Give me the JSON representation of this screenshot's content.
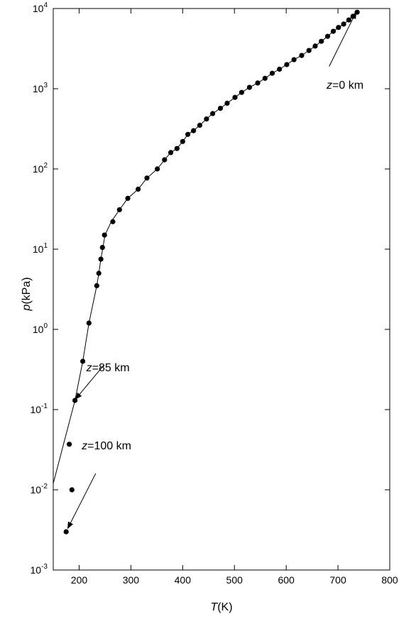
{
  "chart_data": {
    "type": "scatter",
    "x_axis": {
      "label_var": "T",
      "label_unit": "(K)",
      "lim": [
        150,
        800
      ],
      "ticks": [
        200,
        300,
        400,
        500,
        600,
        700,
        800
      ],
      "tick_labels": [
        "200",
        "300",
        "400",
        "500",
        "600",
        "700",
        "800"
      ]
    },
    "y_axis": {
      "label_var": "p",
      "label_unit": "(kPa)",
      "scale": "log",
      "lim": [
        0.001,
        10000
      ],
      "ticks": [
        0.001,
        0.01,
        0.1,
        1,
        10,
        100,
        1000,
        10000
      ],
      "tick_labels": [
        {
          "base": "10",
          "exp": "-3"
        },
        {
          "base": "10",
          "exp": "-2"
        },
        {
          "base": "10",
          "exp": "-1"
        },
        {
          "base": "10",
          "exp": "0"
        },
        {
          "base": "10",
          "exp": "1"
        },
        {
          "base": "10",
          "exp": "2"
        },
        {
          "base": "10",
          "exp": "3"
        },
        {
          "base": "10",
          "exp": "4"
        }
      ]
    },
    "grid": false,
    "series": [
      {
        "kind": "points",
        "x": [
          737,
          729,
          721,
          711,
          701,
          691,
          680,
          668,
          656,
          644,
          630,
          615,
          601,
          587,
          573,
          559,
          545,
          529,
          514,
          501,
          486,
          473,
          458,
          446,
          433,
          421,
          410,
          400,
          389,
          377,
          365,
          351,
          331,
          314,
          294,
          278,
          265,
          249,
          245,
          242,
          238,
          234,
          219,
          207,
          192,
          181,
          186,
          175
        ],
        "y": [
          9000,
          8000,
          7200,
          6400,
          5800,
          5200,
          4500,
          3900,
          3400,
          3000,
          2600,
          2300,
          2000,
          1750,
          1560,
          1350,
          1180,
          1040,
          900,
          780,
          660,
          570,
          490,
          420,
          350,
          300,
          270,
          220,
          180,
          160,
          130,
          100,
          77,
          56,
          43,
          31,
          22,
          15,
          10.5,
          7.5,
          5,
          3.5,
          1.2,
          0.4,
          0.13,
          0.037,
          0.01,
          0.003
        ]
      },
      {
        "kind": "line",
        "x": [
          737,
          729,
          721,
          711,
          701,
          691,
          680,
          668,
          656,
          644,
          630,
          615,
          601,
          587,
          573,
          559,
          545,
          529,
          514,
          501,
          486,
          473,
          458,
          446,
          433,
          421,
          410,
          400,
          389,
          377,
          365,
          351,
          331,
          314,
          294,
          278,
          262,
          250,
          246,
          242,
          238,
          234,
          219,
          207,
          192,
          150
        ],
        "y": [
          9000,
          8000,
          7200,
          6400,
          5800,
          5200,
          4500,
          3900,
          3400,
          3000,
          2600,
          2300,
          2000,
          1750,
          1560,
          1350,
          1180,
          1040,
          900,
          780,
          660,
          570,
          490,
          420,
          350,
          300,
          270,
          220,
          180,
          160,
          130,
          100,
          77,
          56,
          43,
          31,
          22,
          15,
          10.5,
          7.5,
          5,
          3.5,
          1.2,
          0.4,
          0.13,
          0.012
        ]
      }
    ],
    "annotations": [
      {
        "var": "z",
        "text": "=0 km",
        "text_x": 678,
        "text_y": 1000,
        "arrow_from": [
          683,
          1900
        ],
        "arrow_to": [
          735,
          9000
        ]
      },
      {
        "var": "z",
        "text": "=85 km",
        "text_x": 214,
        "text_y": 0.3,
        "arrow_from": [
          248,
          0.36
        ],
        "arrow_to": [
          193,
          0.135
        ]
      },
      {
        "var": "z",
        "text": "=100 km",
        "text_x": 205,
        "text_y": 0.032,
        "arrow_from": [
          232,
          0.016
        ],
        "arrow_to": [
          178,
          0.0033
        ]
      }
    ]
  }
}
